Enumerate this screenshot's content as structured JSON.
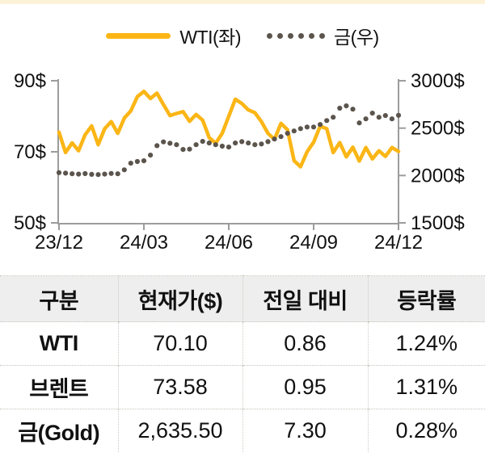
{
  "colors": {
    "wti_line": "#fbb616",
    "gold_dots": "#5b544d",
    "axis": "#9c9c9c",
    "header_bg": "#eeeeee",
    "top_strip": "#fbf2d7"
  },
  "chart_data": {
    "type": "line",
    "title": "",
    "legend": [
      {
        "label": "WTI(좌)",
        "style": "solid"
      },
      {
        "label": "금(우)",
        "style": "dotted"
      }
    ],
    "x_ticks": [
      "23/12",
      "24/03",
      "24/06",
      "24/09",
      "24/12"
    ],
    "left_axis": {
      "tick_labels": [
        "90$",
        "70$",
        "50$"
      ],
      "tick_values": [
        90,
        70,
        50
      ],
      "range": [
        50,
        90
      ],
      "unit": "$"
    },
    "right_axis": {
      "tick_labels": [
        "3000$",
        "2500$",
        "2000$",
        "1500$"
      ],
      "tick_values": [
        3000,
        2500,
        2000,
        1500
      ],
      "range": [
        1500,
        3000
      ],
      "unit": "$"
    },
    "grid": false,
    "legend_position": "top",
    "series": [
      {
        "name": "WTI(좌)",
        "axis": "left",
        "style": "solid",
        "values": [
          75.5,
          69.8,
          72.5,
          70.3,
          74.8,
          77.3,
          72.0,
          76.5,
          78.5,
          75.2,
          79.5,
          81.5,
          85.5,
          87.0,
          85.0,
          86.5,
          83.3,
          80.2,
          80.8,
          81.3,
          78.6,
          80.5,
          78.9,
          74.0,
          72.4,
          75.2,
          80.0,
          84.8,
          83.6,
          81.8,
          81.0,
          78.5,
          75.2,
          73.5,
          78.0,
          76.2,
          67.5,
          65.8,
          70.0,
          72.7,
          77.2,
          76.5,
          69.8,
          72.6,
          68.6,
          71.3,
          67.4,
          71.2,
          68.0,
          70.3,
          68.7,
          71.2,
          70.1
        ]
      },
      {
        "name": "금(우)",
        "axis": "right",
        "style": "dotted",
        "values": [
          2030,
          2025,
          2018,
          2015,
          2020,
          2012,
          2010,
          2015,
          2022,
          2018,
          2060,
          2130,
          2148,
          2155,
          2215,
          2315,
          2355,
          2340,
          2325,
          2275,
          2278,
          2325,
          2360,
          2343,
          2325,
          2310,
          2300,
          2343,
          2357,
          2343,
          2325,
          2333,
          2357,
          2385,
          2410,
          2445,
          2470,
          2495,
          2512,
          2512,
          2538,
          2580,
          2615,
          2710,
          2735,
          2700,
          2555,
          2598,
          2658,
          2615,
          2633,
          2598,
          2635.5
        ]
      }
    ]
  },
  "table": {
    "columns": [
      "구분",
      "현재가($)",
      "전일 대비",
      "등락률"
    ],
    "rows": [
      {
        "name": "WTI",
        "price": "70.10",
        "change": "0.86",
        "rate": "1.24%"
      },
      {
        "name": "브렌트",
        "price": "73.58",
        "change": "0.95",
        "rate": "1.31%"
      },
      {
        "name": "금(Gold)",
        "price": "2,635.50",
        "change": "7.30",
        "rate": "0.28%"
      }
    ]
  }
}
